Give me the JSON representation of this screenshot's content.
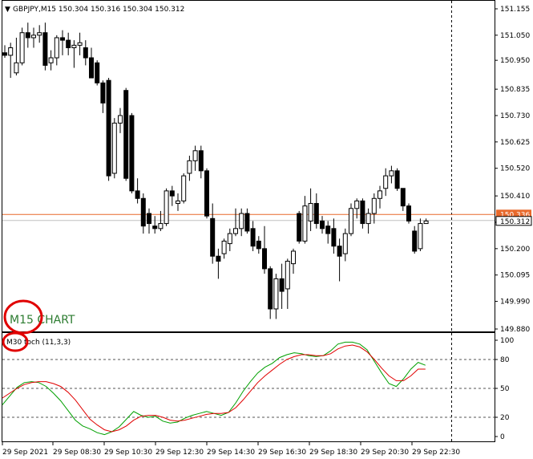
{
  "header": {
    "symbol_line": "GBPJPY,M15  150.304 150.316 150.304 150.312"
  },
  "main_label": "M15  CHART",
  "price_tags": {
    "ask": "150.336",
    "bid": "150.312"
  },
  "indicator": {
    "label_prefix": "M30",
    "label_rest": "toch (11,3,3)",
    "levels": [
      80,
      50,
      20
    ]
  },
  "colors": {
    "bull_body": "#ffffff",
    "bear_body": "#000000",
    "ask_line": "#e8692b",
    "bid_line": "#c0c0c0",
    "main_line": "#00a000",
    "signal_line": "#e00000",
    "annotation": "#e00000",
    "label_text": "#2e7d32"
  },
  "chart_data": [
    {
      "type": "candlestick",
      "title": "GBPJPY,M15",
      "ylim": [
        149.86,
        151.17
      ],
      "y_ticks": [
        "151.155",
        "151.050",
        "150.950",
        "150.835",
        "150.730",
        "150.625",
        "150.520",
        "150.410",
        "150.305",
        "150.200",
        "150.095",
        "149.990",
        "149.880"
      ],
      "x_ticks": [
        "29 Sep 2021",
        "29 Sep 08:30",
        "29 Sep 10:30",
        "29 Sep 12:30",
        "29 Sep 14:30",
        "29 Sep 16:30",
        "29 Sep 18:30",
        "29 Sep 20:30",
        "29 Sep 22:30"
      ],
      "ask_price": 150.336,
      "bid_price": 150.312,
      "candles": [
        {
          "o": 150.98,
          "h": 151.01,
          "l": 150.96,
          "c": 150.97
        },
        {
          "o": 150.97,
          "h": 151.02,
          "l": 150.88,
          "c": 151.0
        },
        {
          "o": 150.9,
          "h": 151.04,
          "l": 150.89,
          "c": 150.94
        },
        {
          "o": 150.94,
          "h": 151.08,
          "l": 150.93,
          "c": 151.06
        },
        {
          "o": 151.06,
          "h": 151.1,
          "l": 151.0,
          "c": 151.04
        },
        {
          "o": 151.04,
          "h": 151.08,
          "l": 151.0,
          "c": 151.05
        },
        {
          "o": 151.05,
          "h": 151.09,
          "l": 151.02,
          "c": 151.06
        },
        {
          "o": 151.06,
          "h": 151.1,
          "l": 150.91,
          "c": 150.93
        },
        {
          "o": 150.94,
          "h": 150.99,
          "l": 150.91,
          "c": 150.96
        },
        {
          "o": 150.96,
          "h": 151.05,
          "l": 150.93,
          "c": 151.04
        },
        {
          "o": 151.04,
          "h": 151.07,
          "l": 150.97,
          "c": 151.03
        },
        {
          "o": 151.03,
          "h": 151.06,
          "l": 150.97,
          "c": 151.0
        },
        {
          "o": 151.0,
          "h": 151.03,
          "l": 150.92,
          "c": 151.01
        },
        {
          "o": 151.01,
          "h": 151.06,
          "l": 150.97,
          "c": 151.02
        },
        {
          "o": 151.0,
          "h": 151.03,
          "l": 150.93,
          "c": 150.96
        },
        {
          "o": 150.96,
          "h": 151.0,
          "l": 150.88,
          "c": 150.88
        },
        {
          "o": 150.94,
          "h": 150.95,
          "l": 150.85,
          "c": 150.86
        },
        {
          "o": 150.86,
          "h": 150.87,
          "l": 150.74,
          "c": 150.78
        },
        {
          "o": 150.87,
          "h": 150.88,
          "l": 150.47,
          "c": 150.49
        },
        {
          "o": 150.5,
          "h": 150.72,
          "l": 150.48,
          "c": 150.7
        },
        {
          "o": 150.7,
          "h": 150.76,
          "l": 150.66,
          "c": 150.73
        },
        {
          "o": 150.83,
          "h": 150.84,
          "l": 150.47,
          "c": 150.48
        },
        {
          "o": 150.73,
          "h": 150.74,
          "l": 150.42,
          "c": 150.43
        },
        {
          "o": 150.43,
          "h": 150.48,
          "l": 150.38,
          "c": 150.4
        },
        {
          "o": 150.4,
          "h": 150.42,
          "l": 150.26,
          "c": 150.29
        },
        {
          "o": 150.34,
          "h": 150.36,
          "l": 150.26,
          "c": 150.3
        },
        {
          "o": 150.29,
          "h": 150.33,
          "l": 150.26,
          "c": 150.28
        },
        {
          "o": 150.28,
          "h": 150.35,
          "l": 150.27,
          "c": 150.3
        },
        {
          "o": 150.3,
          "h": 150.44,
          "l": 150.29,
          "c": 150.43
        },
        {
          "o": 150.43,
          "h": 150.45,
          "l": 150.37,
          "c": 150.41
        },
        {
          "o": 150.38,
          "h": 150.42,
          "l": 150.35,
          "c": 150.39
        },
        {
          "o": 150.39,
          "h": 150.5,
          "l": 150.38,
          "c": 150.49
        },
        {
          "o": 150.5,
          "h": 150.57,
          "l": 150.47,
          "c": 150.55
        },
        {
          "o": 150.55,
          "h": 150.61,
          "l": 150.51,
          "c": 150.59
        },
        {
          "o": 150.59,
          "h": 150.61,
          "l": 150.48,
          "c": 150.51
        },
        {
          "o": 150.51,
          "h": 150.52,
          "l": 150.32,
          "c": 150.33
        },
        {
          "o": 150.32,
          "h": 150.38,
          "l": 150.14,
          "c": 150.17
        },
        {
          "o": 150.17,
          "h": 150.2,
          "l": 150.08,
          "c": 150.15
        },
        {
          "o": 150.18,
          "h": 150.24,
          "l": 150.16,
          "c": 150.23
        },
        {
          "o": 150.22,
          "h": 150.28,
          "l": 150.19,
          "c": 150.26
        },
        {
          "o": 150.26,
          "h": 150.36,
          "l": 150.25,
          "c": 150.28
        },
        {
          "o": 150.28,
          "h": 150.36,
          "l": 150.25,
          "c": 150.34
        },
        {
          "o": 150.34,
          "h": 150.36,
          "l": 150.26,
          "c": 150.27
        },
        {
          "o": 150.28,
          "h": 150.31,
          "l": 150.19,
          "c": 150.21
        },
        {
          "o": 150.23,
          "h": 150.25,
          "l": 150.18,
          "c": 150.2
        },
        {
          "o": 150.2,
          "h": 150.29,
          "l": 150.1,
          "c": 150.12
        },
        {
          "o": 150.12,
          "h": 150.13,
          "l": 149.92,
          "c": 149.96
        },
        {
          "o": 149.96,
          "h": 150.1,
          "l": 149.92,
          "c": 150.08
        },
        {
          "o": 150.08,
          "h": 150.14,
          "l": 149.96,
          "c": 150.03
        },
        {
          "o": 150.04,
          "h": 150.16,
          "l": 149.96,
          "c": 150.15
        },
        {
          "o": 150.14,
          "h": 150.2,
          "l": 150.1,
          "c": 150.19
        },
        {
          "o": 150.34,
          "h": 150.35,
          "l": 150.22,
          "c": 150.23
        },
        {
          "o": 150.23,
          "h": 150.41,
          "l": 150.22,
          "c": 150.37
        },
        {
          "o": 150.31,
          "h": 150.44,
          "l": 150.27,
          "c": 150.38
        },
        {
          "o": 150.38,
          "h": 150.42,
          "l": 150.28,
          "c": 150.3
        },
        {
          "o": 150.31,
          "h": 150.33,
          "l": 150.26,
          "c": 150.28
        },
        {
          "o": 150.29,
          "h": 150.31,
          "l": 150.22,
          "c": 150.26
        },
        {
          "o": 150.28,
          "h": 150.32,
          "l": 150.18,
          "c": 150.21
        },
        {
          "o": 150.21,
          "h": 150.24,
          "l": 150.07,
          "c": 150.17
        },
        {
          "o": 150.18,
          "h": 150.28,
          "l": 150.15,
          "c": 150.26
        },
        {
          "o": 150.26,
          "h": 150.38,
          "l": 150.25,
          "c": 150.36
        },
        {
          "o": 150.36,
          "h": 150.4,
          "l": 150.32,
          "c": 150.39
        },
        {
          "o": 150.39,
          "h": 150.4,
          "l": 150.28,
          "c": 150.3
        },
        {
          "o": 150.3,
          "h": 150.36,
          "l": 150.26,
          "c": 150.34
        },
        {
          "o": 150.34,
          "h": 150.42,
          "l": 150.3,
          "c": 150.4
        },
        {
          "o": 150.4,
          "h": 150.45,
          "l": 150.36,
          "c": 150.43
        },
        {
          "o": 150.44,
          "h": 150.52,
          "l": 150.41,
          "c": 150.49
        },
        {
          "o": 150.49,
          "h": 150.53,
          "l": 150.46,
          "c": 150.51
        },
        {
          "o": 150.51,
          "h": 150.52,
          "l": 150.43,
          "c": 150.44
        },
        {
          "o": 150.44,
          "h": 150.44,
          "l": 150.35,
          "c": 150.37
        },
        {
          "o": 150.37,
          "h": 150.38,
          "l": 150.3,
          "c": 150.31
        },
        {
          "o": 150.27,
          "h": 150.29,
          "l": 150.18,
          "c": 150.19
        },
        {
          "o": 150.2,
          "h": 150.32,
          "l": 150.19,
          "c": 150.3
        },
        {
          "o": 150.3,
          "h": 150.32,
          "l": 150.3,
          "c": 150.31
        }
      ]
    },
    {
      "type": "line",
      "title": "M30 Stoch (11,3,3)",
      "ylim": [
        -3,
        103
      ],
      "y_ticks": [
        "100",
        "80",
        "50",
        "20",
        "0"
      ],
      "series": [
        {
          "values": [
            33,
            42,
            51,
            56,
            57,
            56,
            52,
            45,
            37,
            27,
            17,
            11,
            8,
            4,
            2,
            5,
            10,
            18,
            26,
            22,
            20,
            21,
            16,
            14,
            15,
            19,
            22,
            24,
            26,
            24,
            22,
            25,
            35,
            47,
            57,
            66,
            72,
            76,
            82,
            85,
            87,
            86,
            84,
            83,
            84,
            89,
            96,
            98,
            98,
            96,
            90,
            78,
            66,
            55,
            52,
            60,
            70,
            77,
            74
          ]
        },
        {
          "values": [
            40,
            45,
            50,
            54,
            56,
            57,
            57,
            55,
            52,
            46,
            38,
            28,
            18,
            12,
            7,
            5,
            7,
            11,
            17,
            21,
            22,
            22,
            20,
            17,
            16,
            17,
            19,
            21,
            23,
            24,
            24,
            25,
            30,
            38,
            47,
            56,
            63,
            69,
            75,
            80,
            83,
            85,
            85,
            84,
            84,
            86,
            91,
            94,
            95,
            93,
            88,
            80,
            71,
            63,
            58,
            58,
            63,
            70,
            70
          ]
        }
      ]
    }
  ]
}
